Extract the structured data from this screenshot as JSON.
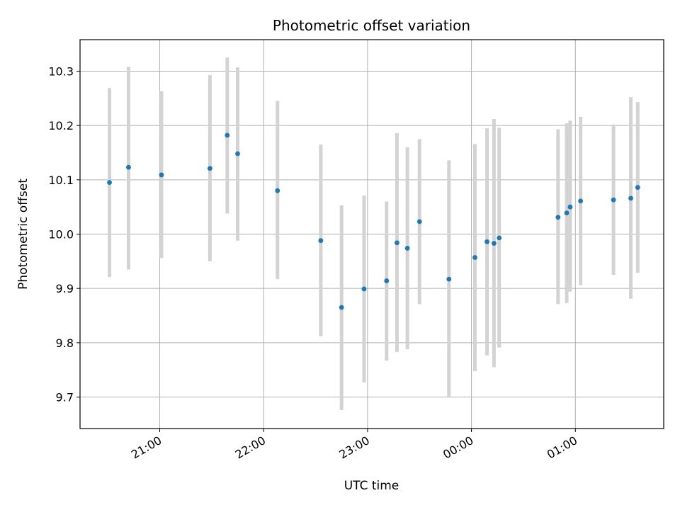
{
  "chart_data": {
    "type": "scatter",
    "title": "Photometric offset variation",
    "xlabel": "UTC time",
    "ylabel": "Photometric offset",
    "ylim": [
      9.642,
      10.358
    ],
    "yticks": [
      9.7,
      9.8,
      9.9,
      10.0,
      10.1,
      10.2,
      10.3
    ],
    "xlim": [
      "20:14",
      "01:51"
    ],
    "xticks": [
      "21:00",
      "22:00",
      "23:00",
      "00:00",
      "01:00"
    ],
    "x_tick_rotation": "30 degrees",
    "grid": true,
    "colors": {
      "point": "#1f77b4",
      "errorbar": "#d3d3d3",
      "grid": "#b0b0b0"
    },
    "series": [
      {
        "points": [
          {
            "x": "20:31",
            "y": 10.095,
            "ylow": 9.921,
            "yhigh": 10.269
          },
          {
            "x": "20:42",
            "y": 10.123,
            "ylow": 9.935,
            "yhigh": 10.308
          },
          {
            "x": "21:01",
            "y": 10.109,
            "ylow": 9.956,
            "yhigh": 10.263
          },
          {
            "x": "21:29",
            "y": 10.121,
            "ylow": 9.95,
            "yhigh": 10.293
          },
          {
            "x": "21:39",
            "y": 10.182,
            "ylow": 10.038,
            "yhigh": 10.325
          },
          {
            "x": "21:45",
            "y": 10.148,
            "ylow": 9.988,
            "yhigh": 10.307
          },
          {
            "x": "22:08",
            "y": 10.08,
            "ylow": 9.917,
            "yhigh": 10.245
          },
          {
            "x": "22:33",
            "y": 9.988,
            "ylow": 9.812,
            "yhigh": 10.165
          },
          {
            "x": "22:45",
            "y": 9.865,
            "ylow": 9.676,
            "yhigh": 10.053
          },
          {
            "x": "22:58",
            "y": 9.899,
            "ylow": 9.727,
            "yhigh": 10.071
          },
          {
            "x": "23:11",
            "y": 9.914,
            "ylow": 9.767,
            "yhigh": 10.06
          },
          {
            "x": "23:17",
            "y": 9.984,
            "ylow": 9.783,
            "yhigh": 10.186
          },
          {
            "x": "23:23",
            "y": 9.974,
            "ylow": 9.788,
            "yhigh": 10.16
          },
          {
            "x": "23:30",
            "y": 10.023,
            "ylow": 9.871,
            "yhigh": 10.175
          },
          {
            "x": "23:47",
            "y": 9.917,
            "ylow": 9.701,
            "yhigh": 10.136
          },
          {
            "x": "00:02",
            "y": 9.957,
            "ylow": 9.748,
            "yhigh": 10.166
          },
          {
            "x": "00:09",
            "y": 9.986,
            "ylow": 9.777,
            "yhigh": 10.195
          },
          {
            "x": "00:13",
            "y": 9.983,
            "ylow": 9.755,
            "yhigh": 10.212
          },
          {
            "x": "00:16",
            "y": 9.993,
            "ylow": 9.791,
            "yhigh": 10.196
          },
          {
            "x": "00:50",
            "y": 10.031,
            "ylow": 9.871,
            "yhigh": 10.193
          },
          {
            "x": "00:55",
            "y": 10.039,
            "ylow": 9.873,
            "yhigh": 10.204
          },
          {
            "x": "00:57",
            "y": 10.05,
            "ylow": 9.894,
            "yhigh": 10.209
          },
          {
            "x": "01:03",
            "y": 10.061,
            "ylow": 9.906,
            "yhigh": 10.216
          },
          {
            "x": "01:22",
            "y": 10.063,
            "ylow": 9.925,
            "yhigh": 10.202
          },
          {
            "x": "01:32",
            "y": 10.066,
            "ylow": 9.881,
            "yhigh": 10.252
          },
          {
            "x": "01:36",
            "y": 10.086,
            "ylow": 9.929,
            "yhigh": 10.243
          }
        ]
      }
    ]
  }
}
